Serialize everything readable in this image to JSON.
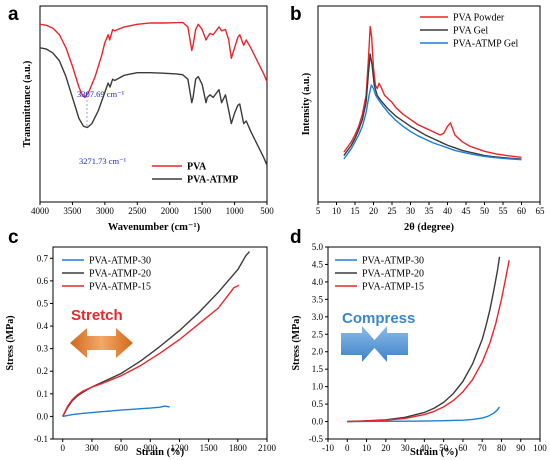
{
  "colors": {
    "red": "#e8262b",
    "black": "#3b3b3b",
    "blue": "#1f7fd6",
    "annot": "#1a25d6",
    "stretch_text": "#e8262b",
    "stretch_arrow": "#e5852b",
    "compress_text": "#3b86cc",
    "compress_arrow": "#4d93d6"
  },
  "chart_data": [
    {
      "panel": "a",
      "type": "line",
      "xlabel": "Wavenumber (cm⁻¹)",
      "ylabel": "Transmittance (a.u.)",
      "xlim": [
        4000,
        500
      ],
      "x_ticks": [
        4000,
        3500,
        3000,
        2500,
        2000,
        1500,
        1000,
        500
      ],
      "legend_position": "bottom-right",
      "annotations": [
        "3307.69 cm⁻¹",
        "3271.73 cm⁻¹"
      ],
      "series": [
        {
          "name": "PVA",
          "color": "#e8262b",
          "x": [
            4000,
            3900,
            3800,
            3700,
            3600,
            3500,
            3400,
            3350,
            3307,
            3250,
            3150,
            3050,
            3000,
            2950,
            2925,
            2880,
            2850,
            2700,
            2500,
            2300,
            2100,
            1900,
            1800,
            1720,
            1660,
            1640,
            1600,
            1560,
            1500,
            1440,
            1420,
            1380,
            1330,
            1240,
            1200,
            1140,
            1090,
            1050,
            1000,
            950,
            920,
            860,
            820,
            750,
            650,
            550,
            500
          ],
          "y": [
            88,
            87.6,
            86.5,
            84,
            79,
            72,
            64,
            61,
            60,
            62,
            68,
            76,
            81,
            84,
            82,
            86,
            85.5,
            87,
            88,
            88.5,
            88.5,
            88.6,
            88.7,
            87,
            78,
            80,
            86,
            88,
            86,
            82,
            83,
            84.5,
            84,
            87,
            85.5,
            86,
            82,
            75,
            79,
            83,
            84,
            80,
            82,
            79,
            74,
            69,
            66
          ]
        },
        {
          "name": "PVA-ATMP",
          "color": "#3b3b3b",
          "x": [
            4000,
            3900,
            3800,
            3700,
            3600,
            3500,
            3400,
            3330,
            3271,
            3200,
            3100,
            3000,
            2950,
            2920,
            2880,
            2850,
            2700,
            2500,
            2300,
            2100,
            1900,
            1800,
            1720,
            1660,
            1640,
            1600,
            1560,
            1500,
            1440,
            1420,
            1380,
            1330,
            1240,
            1200,
            1140,
            1090,
            1050,
            1000,
            950,
            920,
            860,
            820,
            750,
            650,
            550,
            500
          ],
          "y": [
            79,
            78.5,
            77,
            74,
            68,
            60,
            52,
            49,
            48.5,
            50,
            55,
            62,
            65.5,
            64,
            67,
            66.5,
            68.5,
            69.5,
            69.5,
            69.3,
            69,
            68.7,
            67,
            58,
            60,
            67,
            68,
            65,
            58,
            60,
            61,
            60,
            63,
            58,
            61,
            55,
            50,
            54,
            57,
            57.5,
            50,
            51,
            47,
            42,
            37,
            34
          ]
        }
      ]
    },
    {
      "panel": "b",
      "type": "line",
      "xlabel": "2θ (degree)",
      "ylabel": "Intensity (a.u.)",
      "xlim": [
        5,
        65
      ],
      "x_ticks": [
        5,
        10,
        15,
        20,
        25,
        30,
        35,
        40,
        45,
        50,
        55,
        60,
        65
      ],
      "legend_position": "top-right",
      "series": [
        {
          "name": "PVA Powder",
          "color": "#e8262b",
          "x": [
            12,
            13,
            14,
            15,
            16,
            17,
            18,
            18.6,
            19.1,
            19.5,
            20,
            20.5,
            21,
            21.5,
            22,
            23,
            24,
            25,
            26,
            28,
            30,
            32,
            34,
            36,
            38,
            39,
            40,
            40.8,
            42,
            44,
            46,
            48,
            50,
            53,
            56,
            60
          ],
          "y": [
            7,
            10,
            13,
            17,
            22,
            29,
            40,
            60,
            80,
            74,
            56,
            46,
            44,
            47,
            45,
            40,
            38,
            36,
            33,
            29,
            26,
            23,
            21,
            19,
            17,
            18,
            22,
            24,
            17,
            13,
            10.5,
            9,
            7.5,
            6,
            5,
            4
          ]
        },
        {
          "name": "PVA Gel",
          "color": "#3b3b3b",
          "x": [
            12,
            13,
            14,
            15,
            16,
            17,
            18,
            18.6,
            19.1,
            19.6,
            20.2,
            21,
            22,
            23,
            24,
            26,
            28,
            30,
            32,
            34,
            36,
            38,
            40,
            42,
            44,
            46,
            48,
            50,
            53,
            56,
            60
          ],
          "y": [
            5,
            8,
            11,
            15,
            20,
            26,
            36,
            52,
            64,
            58,
            46,
            40,
            37,
            34.5,
            32,
            28,
            25,
            22,
            19.5,
            17,
            15,
            13,
            11,
            9.5,
            8,
            7,
            6,
            5,
            4.2,
            3.6,
            3
          ]
        },
        {
          "name": "PVA-ATMP Gel",
          "color": "#1f7fd6",
          "x": [
            12,
            13,
            14,
            15,
            16,
            17,
            18,
            18.8,
            19.4,
            20,
            20.6,
            21.5,
            22.5,
            24,
            26,
            28,
            30,
            32,
            34,
            36,
            38,
            40,
            42,
            44,
            46,
            48,
            50,
            53,
            56,
            60
          ],
          "y": [
            3,
            6,
            9,
            13,
            17,
            22,
            30,
            40,
            46,
            44,
            40,
            37,
            34,
            30,
            25.5,
            22,
            19,
            16.5,
            14.5,
            12.5,
            11,
            9.5,
            8,
            7,
            6,
            5.2,
            4.5,
            3.8,
            3.2,
            2.6
          ]
        }
      ]
    },
    {
      "panel": "c",
      "type": "line",
      "xlabel": "Strain (%)",
      "ylabel": "Stress (MPa)",
      "xlim": [
        -100,
        2100
      ],
      "ylim": [
        -0.1,
        0.75
      ],
      "x_ticks": [
        0,
        300,
        600,
        900,
        1200,
        1500,
        1800,
        2100
      ],
      "y_ticks": [
        -0.1,
        0.0,
        0.1,
        0.2,
        0.3,
        0.4,
        0.5,
        0.6,
        0.7
      ],
      "legend_position": "top-left",
      "annotation": "Stretch",
      "series": [
        {
          "name": "PVA-ATMP-30",
          "color": "#1f7fd6",
          "x": [
            0,
            100,
            200,
            300,
            400,
            500,
            600,
            700,
            800,
            900,
            1000,
            1050,
            1100
          ],
          "y": [
            0,
            0.008,
            0.013,
            0.017,
            0.021,
            0.024,
            0.028,
            0.031,
            0.034,
            0.037,
            0.041,
            0.046,
            0.042
          ]
        },
        {
          "name": "PVA-ATMP-20",
          "color": "#3b3b3b",
          "x": [
            0,
            50,
            100,
            150,
            200,
            300,
            400,
            600,
            800,
            1000,
            1200,
            1400,
            1600,
            1800,
            1880,
            1920
          ],
          "y": [
            0,
            0.04,
            0.07,
            0.09,
            0.105,
            0.13,
            0.15,
            0.19,
            0.245,
            0.31,
            0.38,
            0.46,
            0.55,
            0.65,
            0.71,
            0.73
          ]
        },
        {
          "name": "PVA-ATMP-15",
          "color": "#e8262b",
          "x": [
            0,
            50,
            100,
            150,
            200,
            300,
            400,
            600,
            800,
            1000,
            1200,
            1400,
            1600,
            1760,
            1810
          ],
          "y": [
            0,
            0.045,
            0.075,
            0.095,
            0.11,
            0.13,
            0.145,
            0.18,
            0.225,
            0.28,
            0.34,
            0.41,
            0.48,
            0.57,
            0.58
          ]
        }
      ]
    },
    {
      "panel": "d",
      "type": "line",
      "xlabel": "Strain (%)",
      "ylabel": "Stress (MPa)",
      "xlim": [
        -10,
        100
      ],
      "ylim": [
        -0.5,
        5.0
      ],
      "x_ticks": [
        -10,
        0,
        10,
        20,
        30,
        40,
        50,
        60,
        70,
        80,
        90,
        100
      ],
      "y_ticks": [
        -0.5,
        0.0,
        0.5,
        1.0,
        1.5,
        2.0,
        2.5,
        3.0,
        3.5,
        4.0,
        4.5,
        5.0
      ],
      "legend_position": "top-left",
      "annotation": "Compress",
      "series": [
        {
          "name": "PVA-ATMP-30",
          "color": "#1f7fd6",
          "x": [
            0,
            10,
            20,
            30,
            40,
            50,
            60,
            65,
            70,
            73,
            76,
            78,
            79
          ],
          "y": [
            0,
            0.003,
            0.006,
            0.01,
            0.015,
            0.025,
            0.04,
            0.06,
            0.1,
            0.15,
            0.24,
            0.34,
            0.42
          ]
        },
        {
          "name": "PVA-ATMP-20",
          "color": "#3b3b3b",
          "x": [
            0,
            10,
            20,
            30,
            40,
            45,
            50,
            55,
            60,
            65,
            70,
            72,
            74,
            76,
            78,
            79
          ],
          "y": [
            0,
            0.02,
            0.05,
            0.12,
            0.26,
            0.38,
            0.55,
            0.8,
            1.15,
            1.65,
            2.35,
            2.75,
            3.2,
            3.75,
            4.35,
            4.72
          ]
        },
        {
          "name": "PVA-ATMP-15",
          "color": "#e8262b",
          "x": [
            0,
            10,
            20,
            30,
            40,
            45,
            50,
            55,
            60,
            65,
            70,
            74,
            77,
            80,
            82,
            84
          ],
          "y": [
            0,
            0.015,
            0.04,
            0.09,
            0.2,
            0.29,
            0.42,
            0.6,
            0.85,
            1.2,
            1.7,
            2.25,
            2.8,
            3.5,
            4.05,
            4.62
          ]
        }
      ]
    }
  ]
}
